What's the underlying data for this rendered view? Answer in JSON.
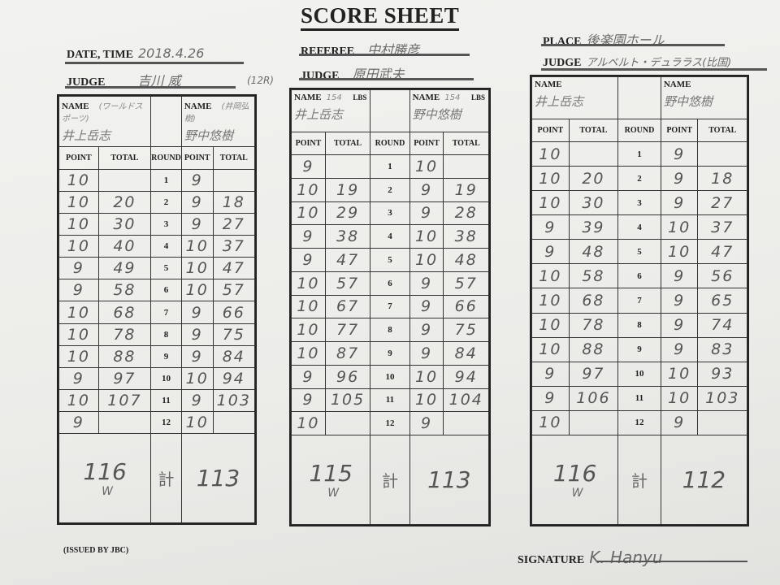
{
  "header": {
    "title": "SCORE SHEET",
    "date_label": "DATE, TIME",
    "date_value": "2018.4.26",
    "judge1_label": "JUDGE",
    "judge1_value": "吉川 威",
    "rounds_note": "(12R)",
    "referee_label": "REFEREE",
    "referee_value": "中村勝彦",
    "judge2_label": "JUDGE",
    "judge2_value": "原田武夫",
    "place_label": "PLACE",
    "place_value": "後楽園ホール",
    "judge3_label": "JUDGE",
    "judge3_value": "アルベルト・デュララス(比国)"
  },
  "columns": {
    "point": "POINT",
    "total": "TOTAL",
    "round": "ROUND",
    "name": "NAME",
    "lbs": "LBS",
    "sum_mark": "計"
  },
  "rounds": [
    "1",
    "2",
    "3",
    "4",
    "5",
    "6",
    "7",
    "8",
    "9",
    "10",
    "11",
    "12"
  ],
  "cards": [
    {
      "left_name": "井上岳志",
      "left_note": "(ワールドスポーツ)",
      "right_name": "野中悠樹",
      "right_note": "(井岡弘樹)",
      "left_weight": "",
      "right_weight": "",
      "left_points": [
        "10",
        "10",
        "10",
        "10",
        "9",
        "9",
        "10",
        "10",
        "10",
        "9",
        "10",
        "9"
      ],
      "left_totals": [
        "",
        "20",
        "30",
        "40",
        "49",
        "58",
        "68",
        "78",
        "88",
        "97",
        "107",
        ""
      ],
      "right_points": [
        "9",
        "9",
        "9",
        "10",
        "10",
        "10",
        "9",
        "9",
        "9",
        "10",
        "9",
        "10"
      ],
      "right_totals": [
        "",
        "18",
        "27",
        "37",
        "47",
        "57",
        "66",
        "75",
        "84",
        "94",
        "103",
        ""
      ],
      "left_final": "116",
      "right_final": "113",
      "win_mark": "W"
    },
    {
      "left_name": "井上岳志",
      "left_note": "",
      "right_name": "野中悠樹",
      "right_note": "",
      "left_weight": "154",
      "right_weight": "154",
      "left_points": [
        "9",
        "10",
        "10",
        "9",
        "9",
        "10",
        "10",
        "10",
        "10",
        "9",
        "9",
        "10"
      ],
      "left_totals": [
        "",
        "19",
        "29",
        "38",
        "47",
        "57",
        "67",
        "77",
        "87",
        "96",
        "105",
        ""
      ],
      "right_points": [
        "10",
        "9",
        "9",
        "10",
        "10",
        "9",
        "9",
        "9",
        "9",
        "10",
        "10",
        "9"
      ],
      "right_totals": [
        "",
        "19",
        "28",
        "38",
        "48",
        "57",
        "66",
        "75",
        "84",
        "94",
        "104",
        ""
      ],
      "left_final": "115",
      "right_final": "113",
      "win_mark": "W"
    },
    {
      "left_name": "井上岳志",
      "left_note": "",
      "right_name": "野中悠樹",
      "right_note": "",
      "left_weight": "",
      "right_weight": "",
      "left_points": [
        "10",
        "10",
        "10",
        "9",
        "9",
        "10",
        "10",
        "10",
        "10",
        "9",
        "9",
        "10"
      ],
      "left_totals": [
        "",
        "20",
        "30",
        "39",
        "48",
        "58",
        "68",
        "78",
        "88",
        "97",
        "106",
        ""
      ],
      "right_points": [
        "9",
        "9",
        "9",
        "10",
        "10",
        "9",
        "9",
        "9",
        "9",
        "10",
        "10",
        "9"
      ],
      "right_totals": [
        "",
        "18",
        "27",
        "37",
        "47",
        "56",
        "65",
        "74",
        "83",
        "93",
        "103",
        ""
      ],
      "left_final": "116",
      "right_final": "112",
      "win_mark": "W"
    }
  ],
  "footer": {
    "issued": "(ISSUED BY JBC)",
    "signature_label": "SIGNATURE",
    "signature_value": "K. Hanyu"
  }
}
